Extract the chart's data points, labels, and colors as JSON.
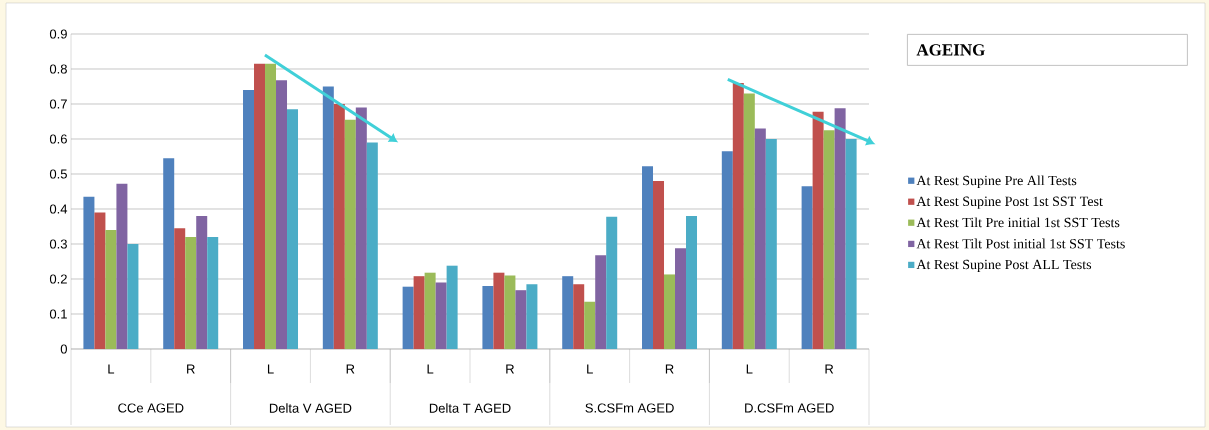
{
  "chart_data": {
    "type": "bar",
    "title": "AGEING",
    "categories": [
      "L",
      "R",
      "L",
      "R",
      "L",
      "R",
      "L",
      "R",
      "L",
      "R"
    ],
    "series": [
      {
        "name": "At Rest Supine Pre All Tests",
        "color": "#4f81bd",
        "values": [
          0.435,
          0.545,
          0.74,
          0.75,
          0.178,
          0.18,
          0.208,
          0.522,
          0.565,
          0.465
        ]
      },
      {
        "name": "At Rest Supine Post 1st SST Test",
        "color": "#c0504d",
        "values": [
          0.39,
          0.345,
          0.815,
          0.7,
          0.208,
          0.218,
          0.185,
          0.48,
          0.76,
          0.678
        ]
      },
      {
        "name": "At Rest Tilt Pre initial 1st SST Tests",
        "color": "#9bbb59",
        "values": [
          0.34,
          0.32,
          0.815,
          0.655,
          0.218,
          0.21,
          0.135,
          0.213,
          0.73,
          0.625
        ]
      },
      {
        "name": "At Rest Tilt Post initial 1st SST Tests",
        "color": "#8064a2",
        "values": [
          0.472,
          0.38,
          0.768,
          0.69,
          0.19,
          0.168,
          0.268,
          0.288,
          0.63,
          0.688
        ]
      },
      {
        "name": "At Rest Supine Post ALL Tests",
        "color": "#4bacc6",
        "values": [
          0.3,
          0.32,
          0.685,
          0.59,
          0.238,
          0.185,
          0.378,
          0.38,
          0.6,
          0.6
        ]
      }
    ],
    "annotations": [
      "CCe AGED",
      "Delta V AGED",
      "Delta T AGED",
      "S.CSFm AGED",
      "D.CSFm AGED"
    ],
    "ylim": [
      0,
      0.9
    ],
    "yticks": [
      0,
      0.1,
      0.2,
      0.3,
      0.4,
      0.5,
      0.6,
      0.7,
      0.8,
      0.9
    ],
    "grid": "y",
    "legend": "right"
  }
}
